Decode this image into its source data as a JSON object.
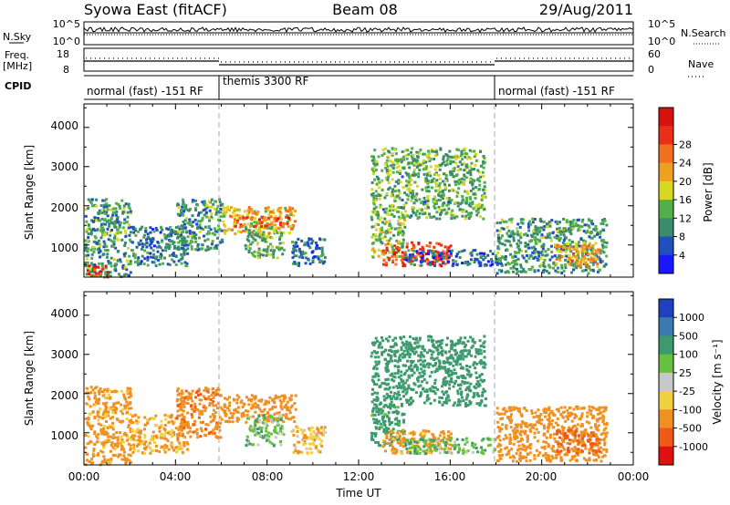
{
  "header": {
    "title_left": "Syowa East (fitACF)",
    "title_center": "Beam 08",
    "title_right": "29/Aug/2011"
  },
  "top_panels": {
    "nsky_label": "N.Sky",
    "nsky_ticks": [
      "10^5",
      "10^0"
    ],
    "nsearch_label": "N.Search",
    "nsearch_ticks": [
      "10^5",
      "10^0"
    ],
    "freq_label_1": "Freq.",
    "freq_label_2": "[MHz]",
    "freq_ticks": [
      "18",
      "8"
    ],
    "nave_label": "Nave",
    "nave_ticks": [
      "60",
      "0"
    ],
    "cpid_label": "CPID",
    "cpid_segments": [
      {
        "label": "normal (fast) -151 RF",
        "start_hour": 0,
        "end_hour": 6
      },
      {
        "label": "themis 3300 RF",
        "start_hour": 6,
        "end_hour": 18
      },
      {
        "label": "normal (fast) -151 RF",
        "start_hour": 18,
        "end_hour": 24
      }
    ]
  },
  "xaxis": {
    "title": "Time UT",
    "tick_labels": [
      "00:00",
      "04:00",
      "08:00",
      "12:00",
      "16:00",
      "20:00",
      "00:00"
    ]
  },
  "yaxis": {
    "title": "Slant Range [km]",
    "tick_labels": [
      "1000",
      "2000",
      "3000",
      "4000"
    ]
  },
  "colorbars": {
    "power": {
      "title": "Power [dB]",
      "tick_labels": [
        "4",
        "8",
        "12",
        "16",
        "20",
        "24",
        "28"
      ],
      "colors": [
        "#1818ff",
        "#2050c0",
        "#3a8c6a",
        "#52b04a",
        "#d8d820",
        "#f0a020",
        "#f07020",
        "#e83018",
        "#d81010"
      ]
    },
    "velocity": {
      "title": "Velocity [m s⁻¹]",
      "tick_labels": [
        "1000",
        "500",
        "100",
        "25",
        "-25",
        "-100",
        "-500",
        "-1000"
      ],
      "colors": [
        "#2040c0",
        "#3a7ab0",
        "#3c9a6c",
        "#68c040",
        "#c8c8c8",
        "#f0d040",
        "#f09020",
        "#f05a18",
        "#e01010"
      ]
    }
  },
  "chart_data": [
    {
      "type": "heatmap",
      "name": "Power",
      "x_unit": "hour UT",
      "y_unit": "km",
      "xlim": [
        0,
        24
      ],
      "ylim": [
        180,
        4600
      ],
      "zlim_db": [
        0,
        32
      ],
      "mode_change_hours": [
        6,
        18
      ],
      "regions": [
        {
          "x": [
            0.0,
            2.0
          ],
          "y": [
            200,
            2200
          ],
          "level_db": 10
        },
        {
          "x": [
            0.0,
            1.0
          ],
          "y": [
            200,
            500
          ],
          "level_db": 28
        },
        {
          "x": [
            2.0,
            4.5
          ],
          "y": [
            500,
            1500
          ],
          "level_db": 8
        },
        {
          "x": [
            4.0,
            6.0
          ],
          "y": [
            900,
            2200
          ],
          "level_db": 10
        },
        {
          "x": [
            6.0,
            9.2
          ],
          "y": [
            1300,
            2000
          ],
          "level_db": 18
        },
        {
          "x": [
            6.5,
            9.0
          ],
          "y": [
            1500,
            1750
          ],
          "level_db": 24
        },
        {
          "x": [
            7.0,
            8.7
          ],
          "y": [
            700,
            1500
          ],
          "level_db": 12
        },
        {
          "x": [
            9.0,
            10.5
          ],
          "y": [
            500,
            1200
          ],
          "level_db": 8
        },
        {
          "x": [
            12.5,
            14.0
          ],
          "y": [
            700,
            1700
          ],
          "level_db": 14
        },
        {
          "x": [
            13.0,
            16.0
          ],
          "y": [
            500,
            1100
          ],
          "level_db": 26
        },
        {
          "x": [
            14.0,
            18.0
          ],
          "y": [
            500,
            900
          ],
          "level_db": 6
        },
        {
          "x": [
            12.5,
            17.5
          ],
          "y": [
            1700,
            3500
          ],
          "level_db": 12
        },
        {
          "x": [
            18.0,
            22.8
          ],
          "y": [
            300,
            1700
          ],
          "level_db": 10
        },
        {
          "x": [
            20.5,
            22.5
          ],
          "y": [
            500,
            1100
          ],
          "level_db": 20
        }
      ]
    },
    {
      "type": "heatmap",
      "name": "Velocity",
      "x_unit": "hour UT",
      "y_unit": "km",
      "xlim": [
        0,
        24
      ],
      "ylim": [
        180,
        4600
      ],
      "zlim_ms": [
        -1000,
        1000
      ],
      "mode_change_hours": [
        6,
        18
      ],
      "regions": [
        {
          "x": [
            0.0,
            2.0
          ],
          "y": [
            200,
            2200
          ],
          "level_ms": -150
        },
        {
          "x": [
            2.0,
            4.5
          ],
          "y": [
            500,
            1500
          ],
          "level_ms": -120
        },
        {
          "x": [
            4.0,
            6.0
          ],
          "y": [
            900,
            2200
          ],
          "level_ms": -400
        },
        {
          "x": [
            6.0,
            9.2
          ],
          "y": [
            1300,
            2000
          ],
          "level_ms": -300
        },
        {
          "x": [
            7.0,
            8.7
          ],
          "y": [
            700,
            1500
          ],
          "level_ms": 60
        },
        {
          "x": [
            9.0,
            10.5
          ],
          "y": [
            500,
            1200
          ],
          "level_ms": -80
        },
        {
          "x": [
            12.5,
            14.0
          ],
          "y": [
            700,
            1700
          ],
          "level_ms": 150
        },
        {
          "x": [
            13.0,
            16.0
          ],
          "y": [
            500,
            1100
          ],
          "level_ms": -150
        },
        {
          "x": [
            14.0,
            18.0
          ],
          "y": [
            500,
            900
          ],
          "level_ms": 80
        },
        {
          "x": [
            12.5,
            17.5
          ],
          "y": [
            1700,
            3500
          ],
          "level_ms": 200
        },
        {
          "x": [
            18.0,
            22.8
          ],
          "y": [
            300,
            1700
          ],
          "level_ms": -250
        },
        {
          "x": [
            20.5,
            22.5
          ],
          "y": [
            500,
            1100
          ],
          "level_ms": -600
        }
      ]
    }
  ]
}
